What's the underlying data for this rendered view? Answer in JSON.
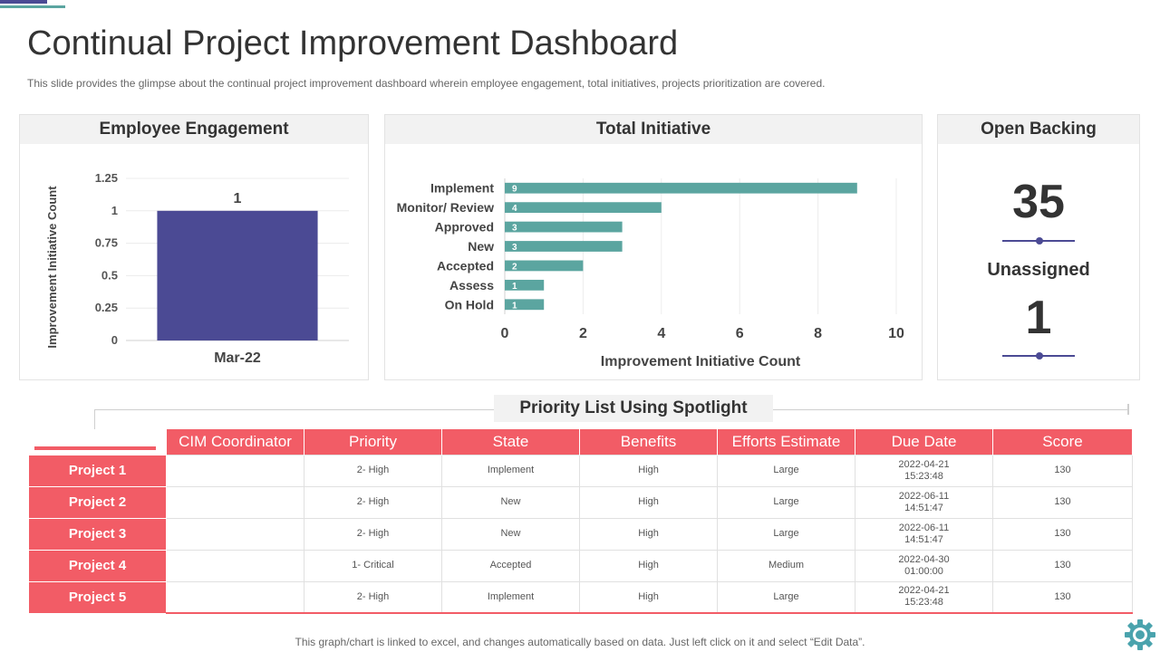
{
  "header": {
    "title": "Continual Project Improvement Dashboard",
    "subtitle": "This slide provides the glimpse about the continual project improvement dashboard wherein employee engagement, total initiatives, projects prioritization are covered."
  },
  "panels": {
    "employee_engagement": "Employee Engagement",
    "total_initiative": "Total Initiative",
    "open_backing": "Open Backing"
  },
  "open_backing": {
    "open_count": "35",
    "unassigned_label": "Unassigned",
    "unassigned_count": "1"
  },
  "colors": {
    "accent_purple": "#4b4a94",
    "accent_teal": "#5ba5a0",
    "accent_red": "#f25c66"
  },
  "chart_data": [
    {
      "type": "bar",
      "categories": [
        "Mar-22"
      ],
      "values": [
        1
      ],
      "data_labels": [
        "1"
      ],
      "ylabel": "Improvement Initiative Count",
      "ylim": [
        0,
        1.25
      ],
      "yticks": [
        "0",
        "0.25",
        "0.5",
        "0.75",
        "1",
        "1.25"
      ],
      "grid": true,
      "color": "#4b4a94"
    },
    {
      "type": "bar",
      "orientation": "horizontal",
      "categories": [
        "Implement",
        "Monitor/ Review",
        "Approved",
        "New",
        "Accepted",
        "Assess",
        "On Hold"
      ],
      "values": [
        9,
        4,
        3,
        3,
        2,
        1,
        1
      ],
      "data_labels": [
        "9",
        "4",
        "3",
        "3",
        "2",
        "1",
        "1"
      ],
      "xlabel": "Improvement Initiative Count",
      "xlim": [
        0,
        10
      ],
      "xticks": [
        "0",
        "2",
        "4",
        "6",
        "8",
        "10"
      ],
      "grid": true,
      "color": "#5ba5a0"
    }
  ],
  "priority_list": {
    "title": "Priority List Using Spotlight",
    "columns": [
      "CIM Coordinator",
      "Priority",
      "State",
      "Benefits",
      "Efforts  Estimate",
      "Due Date",
      "Score"
    ],
    "rows": [
      {
        "project": "Project 1",
        "cim": "",
        "priority": "2- High",
        "state": "Implement",
        "benefits": "High",
        "efforts": "Large",
        "due_date": "2022-04-21",
        "due_time": "15:23:48",
        "score": "130"
      },
      {
        "project": "Project 2",
        "cim": "",
        "priority": "2- High",
        "state": "New",
        "benefits": "High",
        "efforts": "Large",
        "due_date": "2022-06-11",
        "due_time": "14:51:47",
        "score": "130"
      },
      {
        "project": "Project 3",
        "cim": "",
        "priority": "2- High",
        "state": "New",
        "benefits": "High",
        "efforts": "Large",
        "due_date": "2022-06-11",
        "due_time": "14:51:47",
        "score": "130"
      },
      {
        "project": "Project 4",
        "cim": "",
        "priority": "1- Critical",
        "state": "Accepted",
        "benefits": "High",
        "efforts": "Medium",
        "due_date": "2022-04-30",
        "due_time": "01:00:00",
        "score": "130"
      },
      {
        "project": "Project 5",
        "cim": "",
        "priority": "2- High",
        "state": "Implement",
        "benefits": "High",
        "efforts": "Large",
        "due_date": "2022-04-21",
        "due_time": "15:23:48",
        "score": "130"
      }
    ]
  },
  "footer": {
    "note": "This graph/chart is linked to excel, and changes automatically based on data. Just left click on it and select “Edit Data”."
  },
  "icons": {
    "settings": "gear-icon"
  }
}
